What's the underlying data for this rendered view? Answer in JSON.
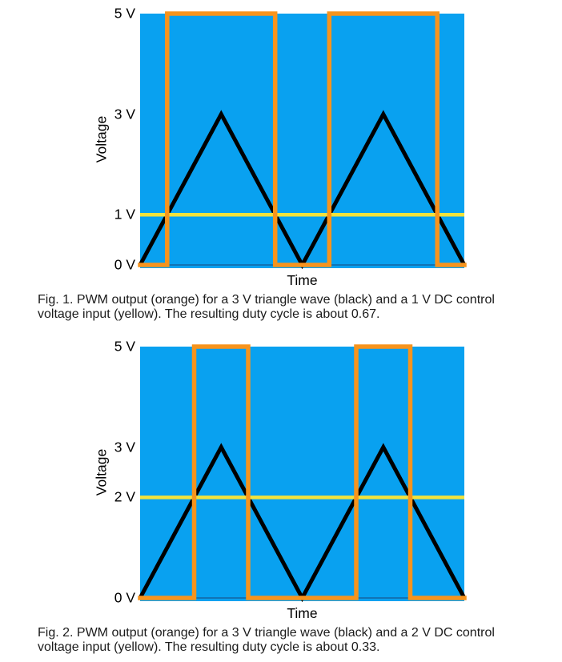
{
  "page": {
    "background_color": "#ffffff"
  },
  "figures": [
    {
      "caption": "Fig. 1. PWM output (orange) for a 3 V triangle wave (black) and a 1 V DC control voltage input (yellow). The resulting duty cycle is about 0.67."
    },
    {
      "caption": "Fig. 2. PWM output (orange) for a 3 V triangle wave (black) and a 2 V DC control voltage input (yellow). The resulting duty cycle is about 0.33."
    }
  ],
  "chart_data": [
    {
      "type": "line",
      "xlabel": "Time",
      "ylabel": "Voltage",
      "xlim": [
        0,
        2
      ],
      "x_unit": "triangle-wave periods",
      "ylim": [
        0,
        5
      ],
      "grid": false,
      "legend": "none",
      "plot_background": "#09A1F0",
      "axis_line_color": "#1173B4",
      "yticks": [
        {
          "value": 5,
          "label": "5 V"
        },
        {
          "value": 3,
          "label": "3 V"
        },
        {
          "value": 1,
          "label": "1 V"
        },
        {
          "value": 0,
          "label": "0 V"
        }
      ],
      "triangle_peak_v": 3,
      "control_voltage_v": 1,
      "pwm_high_v": 5,
      "duty_cycle": 0.67,
      "series": [
        {
          "name": "triangle-wave",
          "color": "#000000",
          "stroke_width": 5,
          "points": [
            [
              0,
              0
            ],
            [
              0.5,
              3
            ],
            [
              1,
              0
            ],
            [
              1.5,
              3
            ],
            [
              2,
              0
            ]
          ]
        },
        {
          "name": "dc-control-voltage",
          "color": "#F2E33C",
          "stroke_width": 4.5,
          "points": [
            [
              0,
              1
            ],
            [
              2,
              1
            ]
          ]
        },
        {
          "name": "pwm-output",
          "color": "#F7941D",
          "stroke_width": 5.5,
          "points": [
            [
              0,
              0
            ],
            [
              0.1667,
              0
            ],
            [
              0.1667,
              5
            ],
            [
              0.8333,
              5
            ],
            [
              0.8333,
              0
            ],
            [
              1.1667,
              0
            ],
            [
              1.1667,
              5
            ],
            [
              1.8333,
              5
            ],
            [
              1.8333,
              0
            ],
            [
              2,
              0
            ]
          ]
        }
      ]
    },
    {
      "type": "line",
      "xlabel": "Time",
      "ylabel": "Voltage",
      "xlim": [
        0,
        2
      ],
      "x_unit": "triangle-wave periods",
      "ylim": [
        0,
        5
      ],
      "grid": false,
      "legend": "none",
      "plot_background": "#09A1F0",
      "axis_line_color": "#1173B4",
      "yticks": [
        {
          "value": 5,
          "label": "5 V"
        },
        {
          "value": 3,
          "label": "3 V"
        },
        {
          "value": 2,
          "label": "2 V"
        },
        {
          "value": 0,
          "label": "0 V"
        }
      ],
      "triangle_peak_v": 3,
      "control_voltage_v": 2,
      "pwm_high_v": 5,
      "duty_cycle": 0.33,
      "series": [
        {
          "name": "triangle-wave",
          "color": "#000000",
          "stroke_width": 5,
          "points": [
            [
              0,
              0
            ],
            [
              0.5,
              3
            ],
            [
              1,
              0
            ],
            [
              1.5,
              3
            ],
            [
              2,
              0
            ]
          ]
        },
        {
          "name": "dc-control-voltage",
          "color": "#F2E33C",
          "stroke_width": 4.5,
          "points": [
            [
              0,
              2
            ],
            [
              2,
              2
            ]
          ]
        },
        {
          "name": "pwm-output",
          "color": "#F7941D",
          "stroke_width": 5.5,
          "points": [
            [
              0,
              0
            ],
            [
              0.3333,
              0
            ],
            [
              0.3333,
              5
            ],
            [
              0.6667,
              5
            ],
            [
              0.6667,
              0
            ],
            [
              1.3333,
              0
            ],
            [
              1.3333,
              5
            ],
            [
              1.6667,
              5
            ],
            [
              1.6667,
              0
            ],
            [
              2,
              0
            ]
          ]
        }
      ]
    }
  ]
}
